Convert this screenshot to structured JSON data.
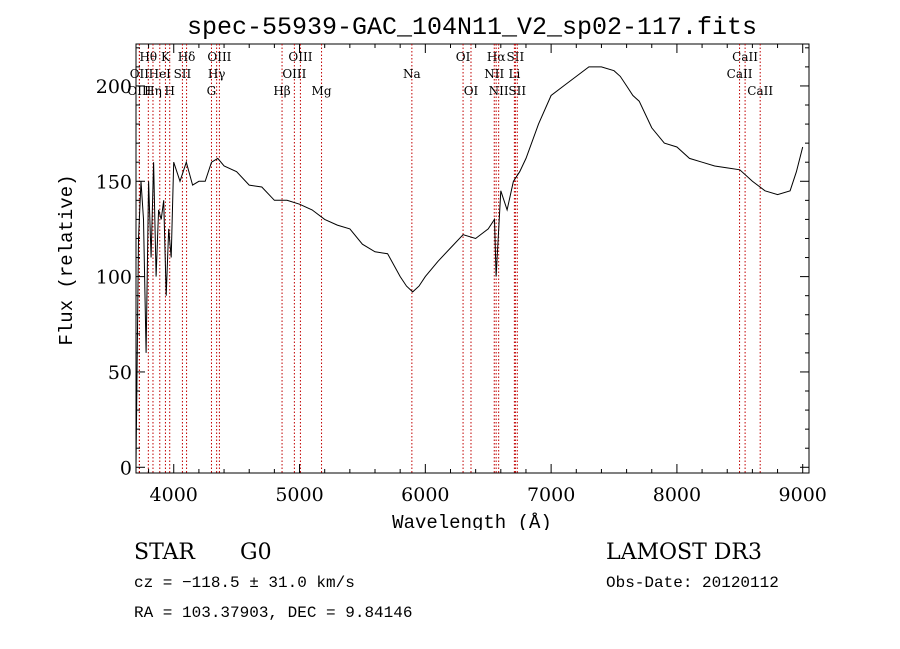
{
  "chart_data": {
    "type": "line",
    "title": "spec-55939-GAC_104N11_V2_sp02-117.fits",
    "xlabel": "Wavelength (Å)",
    "ylabel": "Flux (relative)",
    "xlim": [
      3700,
      9050
    ],
    "ylim": [
      -3,
      222
    ],
    "xticks": [
      4000,
      5000,
      6000,
      7000,
      8000,
      9000
    ],
    "yticks": [
      0,
      50,
      100,
      150,
      200
    ],
    "line_color": "#000000",
    "marker_color": "#c00000",
    "series": [
      {
        "name": "flux",
        "x": [
          3700,
          3720,
          3740,
          3760,
          3780,
          3800,
          3820,
          3840,
          3860,
          3880,
          3900,
          3920,
          3940,
          3960,
          3980,
          4000,
          4050,
          4100,
          4150,
          4200,
          4250,
          4300,
          4350,
          4400,
          4500,
          4600,
          4700,
          4800,
          4900,
          5000,
          5100,
          5200,
          5300,
          5400,
          5500,
          5600,
          5700,
          5800,
          5850,
          5900,
          5950,
          6000,
          6100,
          6200,
          6300,
          6400,
          6500,
          6550,
          6563,
          6600,
          6650,
          6700,
          6750,
          6800,
          6900,
          7000,
          7100,
          7200,
          7300,
          7400,
          7500,
          7550,
          7600,
          7650,
          7700,
          7800,
          7900,
          8000,
          8100,
          8200,
          8300,
          8400,
          8500,
          8600,
          8700,
          8800,
          8900,
          8950,
          9000
        ],
        "y": [
          0,
          120,
          150,
          130,
          60,
          150,
          110,
          160,
          100,
          135,
          130,
          140,
          90,
          125,
          110,
          160,
          150,
          160,
          148,
          150,
          150,
          160,
          162,
          158,
          155,
          148,
          147,
          140,
          140,
          138,
          135,
          130,
          127,
          125,
          117,
          113,
          112,
          100,
          95,
          92,
          95,
          100,
          108,
          115,
          122,
          120,
          125,
          130,
          100,
          145,
          135,
          150,
          155,
          162,
          180,
          195,
          200,
          205,
          210,
          210,
          208,
          205,
          200,
          195,
          192,
          178,
          170,
          168,
          162,
          160,
          158,
          157,
          156,
          150,
          145,
          143,
          145,
          155,
          168
        ]
      }
    ],
    "lines": [
      {
        "name": "Hθ",
        "wl": 3798,
        "row": 1
      },
      {
        "name": "OII",
        "wl": 3727,
        "row": 2
      },
      {
        "name": "OIII",
        "wl": 3727,
        "row": 3
      },
      {
        "name": "K",
        "wl": 3934,
        "row": 1
      },
      {
        "name": "HeI",
        "wl": 3889,
        "row": 2
      },
      {
        "name": "Hη",
        "wl": 3835,
        "row": 3
      },
      {
        "name": "Hδ",
        "wl": 4102,
        "row": 1
      },
      {
        "name": "SII",
        "wl": 4069,
        "row": 2
      },
      {
        "name": "H",
        "wl": 3968,
        "row": 3
      },
      {
        "name": "OIII",
        "wl": 4363,
        "row": 1
      },
      {
        "name": "Hγ",
        "wl": 4341,
        "row": 2
      },
      {
        "name": "G",
        "wl": 4300,
        "row": 3
      },
      {
        "name": "OIII",
        "wl": 5007,
        "row": 1
      },
      {
        "name": "OIII",
        "wl": 4959,
        "row": 2
      },
      {
        "name": "Hβ",
        "wl": 4861,
        "row": 3
      },
      {
        "name": "Mg",
        "wl": 5175,
        "row": 3
      },
      {
        "name": "Na",
        "wl": 5893,
        "row": 2
      },
      {
        "name": "OI",
        "wl": 6300,
        "row": 1
      },
      {
        "name": "OI",
        "wl": 6363,
        "row": 3
      },
      {
        "name": "Hα",
        "wl": 6563,
        "row": 1
      },
      {
        "name": "SII",
        "wl": 6716,
        "row": 1
      },
      {
        "name": "NII",
        "wl": 6548,
        "row": 2
      },
      {
        "name": "Li",
        "wl": 6708,
        "row": 2
      },
      {
        "name": "NII",
        "wl": 6583,
        "row": 3
      },
      {
        "name": "SII",
        "wl": 6731,
        "row": 3
      },
      {
        "name": "CaII",
        "wl": 8542,
        "row": 1
      },
      {
        "name": "CaII",
        "wl": 8498,
        "row": 2
      },
      {
        "name": "CaII",
        "wl": 8662,
        "row": 3
      }
    ]
  },
  "info": {
    "object_type": "STAR",
    "subclass": "G0",
    "survey": "LAMOST DR3",
    "cz": "cz = −118.5 ± 31.0 km/s",
    "obs_date": "Obs-Date: 20120112",
    "coords": "RA = 103.37903, DEC =    9.84146"
  }
}
